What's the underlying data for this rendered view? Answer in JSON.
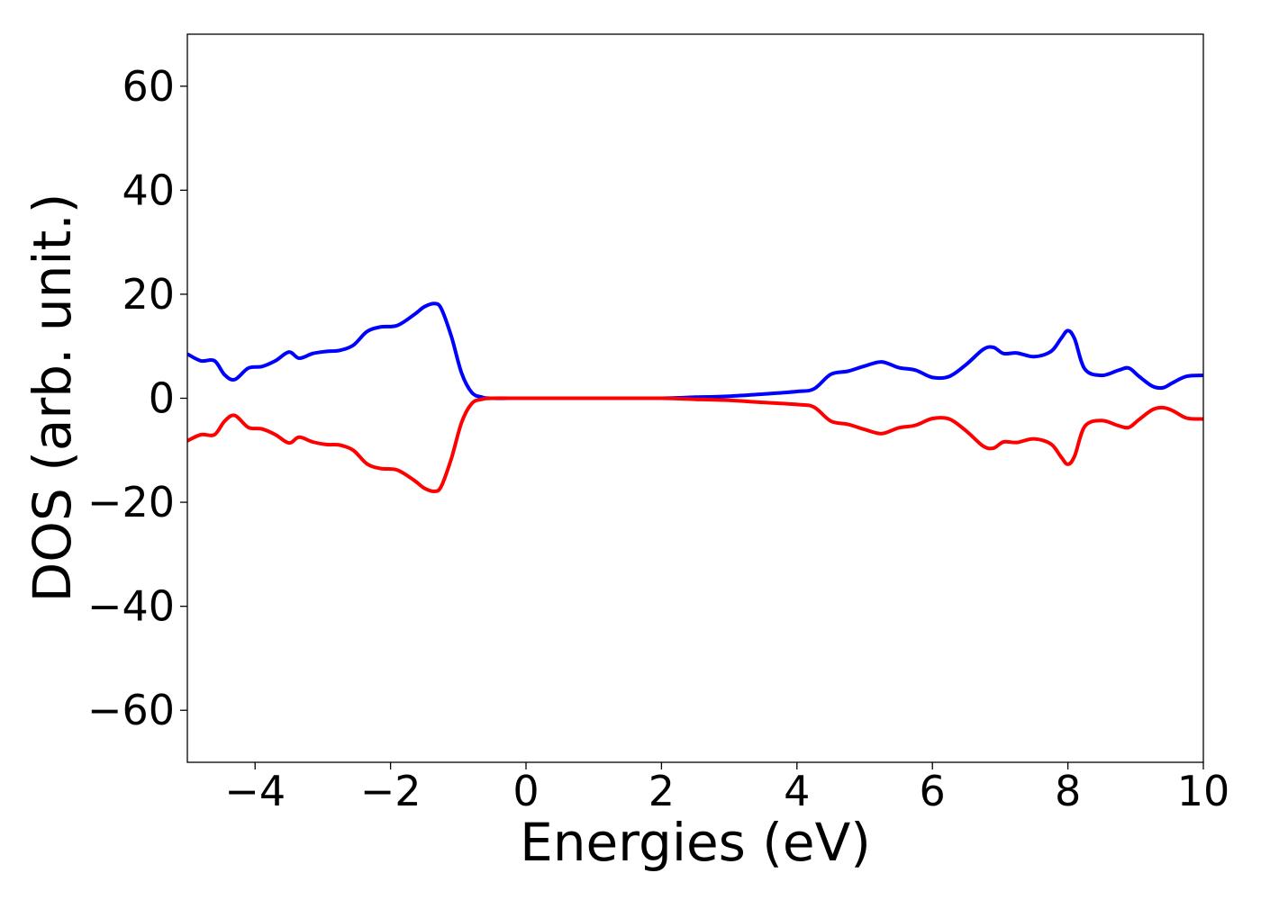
{
  "chart_data": {
    "type": "line",
    "title": "",
    "xlabel": "Energies (eV)",
    "ylabel": "DOS (arb. unit.)",
    "xlim": [
      -5,
      10
    ],
    "ylim": [
      -70,
      70
    ],
    "xticks": [
      -4,
      -2,
      0,
      2,
      4,
      6,
      8,
      10
    ],
    "xtick_labels": [
      "−4",
      "−2",
      "0",
      "2",
      "4",
      "6",
      "8",
      "10"
    ],
    "yticks": [
      60,
      40,
      20,
      0,
      -20,
      -40,
      -60
    ],
    "ytick_labels": [
      "60",
      "40",
      "20",
      "0",
      "−20",
      "−40",
      "−60"
    ],
    "grid": false,
    "legend": "none",
    "series": [
      {
        "color": "#0000ff",
        "x": [
          -5.0,
          -4.8,
          -4.6,
          -4.45,
          -4.3,
          -4.1,
          -3.9,
          -3.7,
          -3.5,
          -3.35,
          -3.15,
          -2.95,
          -2.75,
          -2.55,
          -2.35,
          -2.15,
          -1.9,
          -1.65,
          -1.5,
          -1.35,
          -1.25,
          -1.1,
          -0.95,
          -0.8,
          -0.65,
          -0.5,
          0.0,
          1.0,
          2.0,
          2.5,
          3.0,
          3.5,
          4.0,
          4.25,
          4.5,
          4.75,
          5.0,
          5.25,
          5.5,
          5.75,
          6.0,
          6.25,
          6.5,
          6.75,
          6.9,
          7.05,
          7.25,
          7.5,
          7.75,
          7.9,
          8.0,
          8.1,
          8.25,
          8.5,
          8.75,
          8.9,
          9.05,
          9.25,
          9.4,
          9.55,
          9.75,
          10.0
        ],
        "y": [
          8.5,
          7.2,
          7.2,
          4.5,
          3.6,
          5.8,
          6.1,
          7.2,
          8.9,
          7.7,
          8.6,
          9.0,
          9.2,
          10.2,
          12.8,
          13.7,
          14.0,
          16.1,
          17.6,
          18.2,
          17.2,
          11.8,
          4.8,
          1.1,
          0.2,
          0.0,
          0.0,
          0.0,
          0.0,
          0.2,
          0.4,
          0.8,
          1.3,
          1.8,
          4.6,
          5.2,
          6.2,
          7.0,
          5.9,
          5.4,
          4.0,
          4.2,
          6.5,
          9.4,
          9.8,
          8.6,
          8.7,
          8.0,
          9.0,
          11.5,
          13.0,
          11.4,
          5.6,
          4.4,
          5.4,
          5.8,
          4.2,
          2.3,
          2.0,
          3.0,
          4.2,
          4.4
        ]
      },
      {
        "color": "#ff0000",
        "x": [
          -5.0,
          -4.8,
          -4.6,
          -4.45,
          -4.3,
          -4.1,
          -3.9,
          -3.7,
          -3.5,
          -3.35,
          -3.15,
          -2.95,
          -2.75,
          -2.55,
          -2.35,
          -2.15,
          -1.9,
          -1.65,
          -1.5,
          -1.35,
          -1.25,
          -1.1,
          -0.95,
          -0.8,
          -0.65,
          -0.5,
          0.0,
          1.0,
          2.0,
          2.5,
          3.0,
          3.5,
          4.0,
          4.25,
          4.5,
          4.75,
          5.0,
          5.25,
          5.5,
          5.75,
          6.0,
          6.25,
          6.5,
          6.75,
          6.9,
          7.05,
          7.25,
          7.5,
          7.75,
          7.9,
          8.0,
          8.1,
          8.25,
          8.5,
          8.75,
          8.9,
          9.05,
          9.25,
          9.4,
          9.55,
          9.75,
          10.0
        ],
        "y": [
          -8.2,
          -7.0,
          -7.0,
          -4.4,
          -3.3,
          -5.6,
          -5.9,
          -7.0,
          -8.6,
          -7.5,
          -8.4,
          -8.9,
          -9.0,
          -10.0,
          -12.6,
          -13.5,
          -13.8,
          -15.8,
          -17.3,
          -17.9,
          -16.9,
          -11.5,
          -4.6,
          -1.0,
          -0.2,
          0.0,
          0.0,
          0.0,
          0.0,
          -0.2,
          -0.4,
          -0.8,
          -1.2,
          -1.7,
          -4.4,
          -5.0,
          -6.0,
          -6.8,
          -5.7,
          -5.2,
          -3.9,
          -4.0,
          -6.3,
          -9.2,
          -9.6,
          -8.4,
          -8.5,
          -7.8,
          -8.8,
          -11.3,
          -12.7,
          -11.1,
          -5.4,
          -4.3,
          -5.3,
          -5.6,
          -4.1,
          -2.2,
          -1.8,
          -2.4,
          -3.8,
          -4.0
        ]
      }
    ]
  }
}
